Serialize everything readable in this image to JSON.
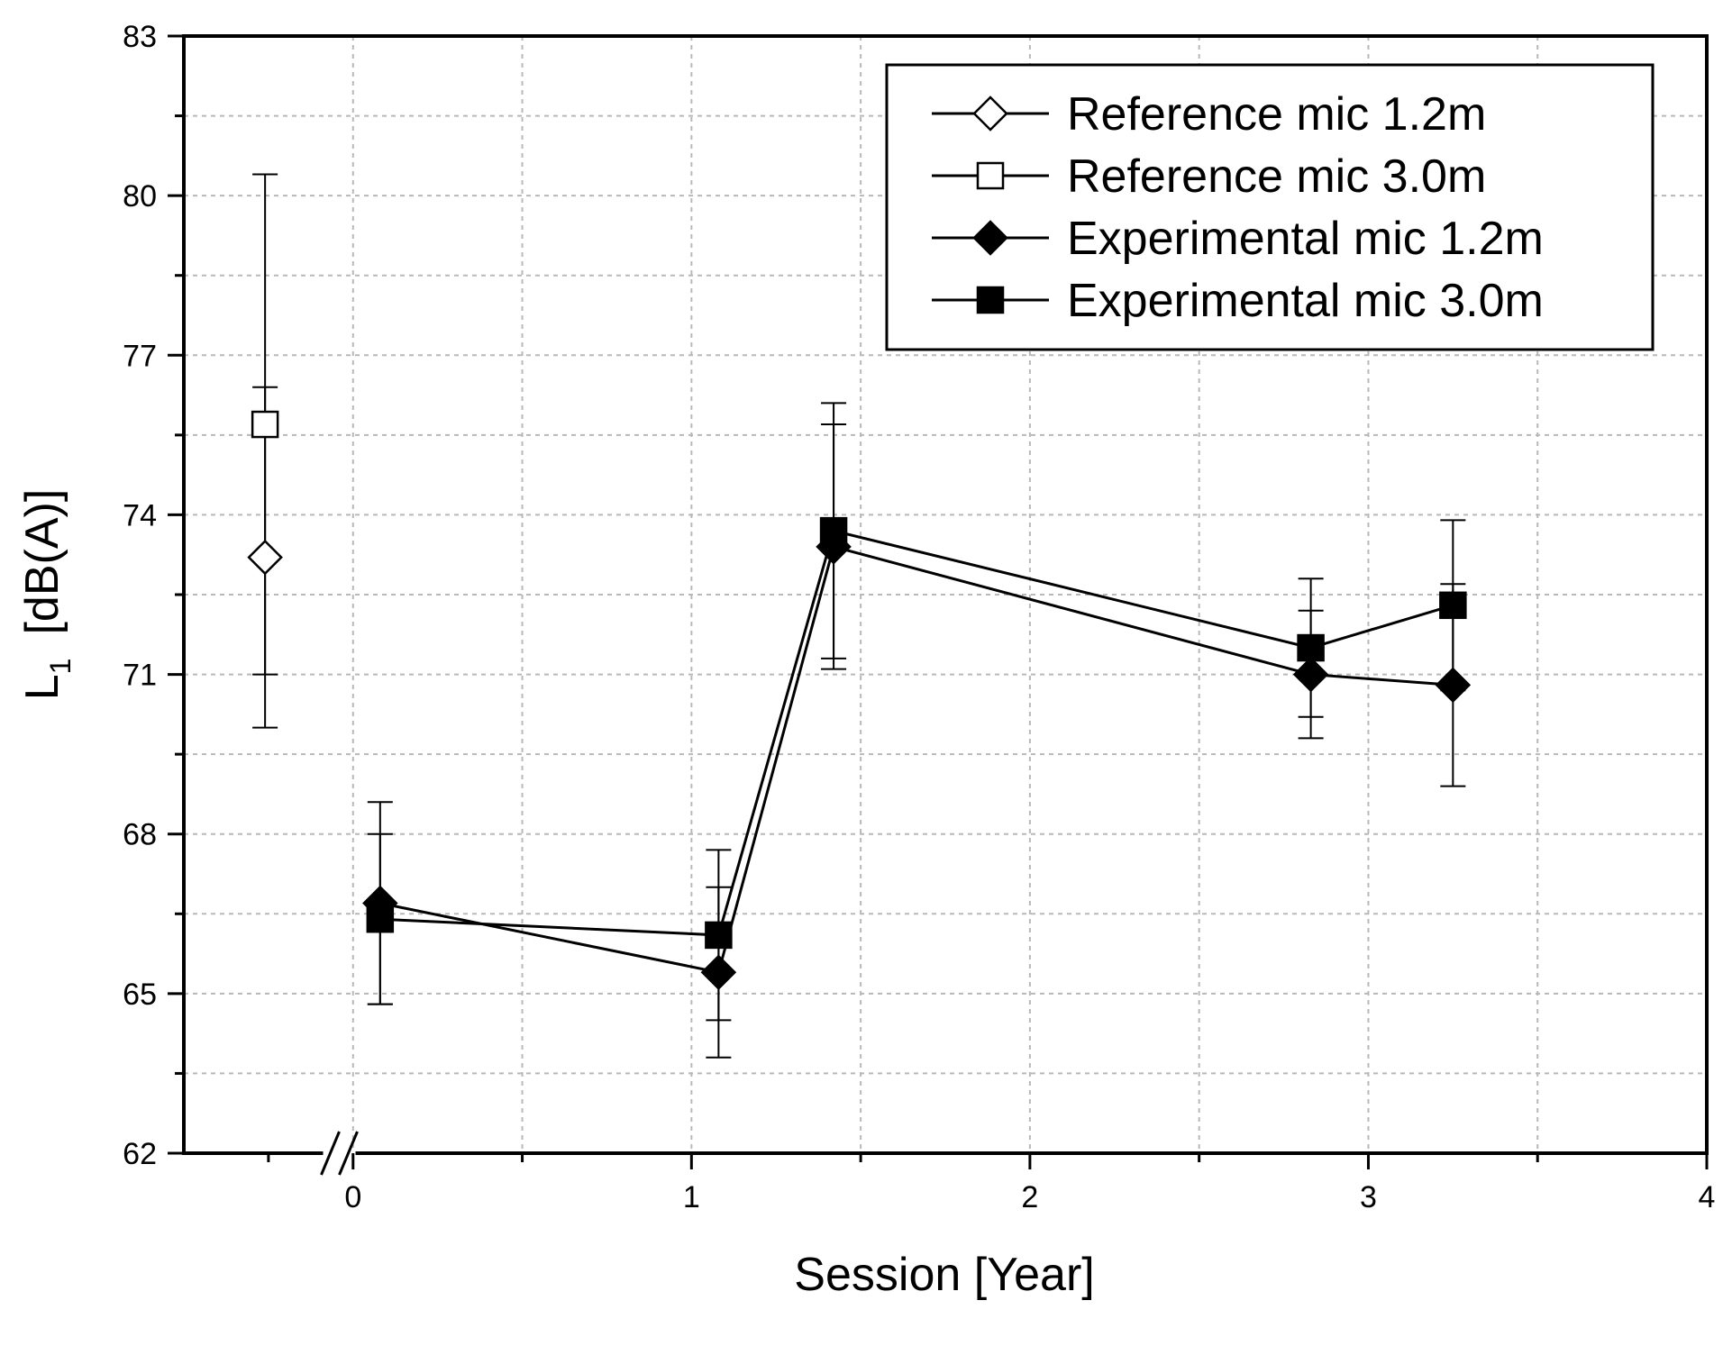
{
  "chart_data": {
    "type": "line",
    "title": "",
    "xlabel": "Session   [Year]",
    "ylabel_main": "L",
    "ylabel_sub": "1",
    "ylabel_rest": "[dB(A)]",
    "xlim": [
      -0.5,
      4
    ],
    "ylim": [
      62,
      83
    ],
    "x_ticks": [
      0,
      1,
      2,
      3,
      4
    ],
    "y_ticks": [
      62,
      65,
      68,
      71,
      74,
      77,
      80,
      83
    ],
    "x_tick_labels": [
      "0",
      "1",
      "2",
      "3",
      "4"
    ],
    "y_tick_labels": [
      "62",
      "65",
      "68",
      "71",
      "74",
      "77",
      "80",
      "83"
    ],
    "axis_break_at": -0.03,
    "grid": true,
    "legend_position": "top-right",
    "series": [
      {
        "name": "Reference mic 1.2m",
        "marker": "diamond-open",
        "connect": false,
        "points": [
          {
            "x": -0.26,
            "y": 73.2,
            "err_low": 70.0,
            "err_high": 76.4
          }
        ]
      },
      {
        "name": "Reference mic 3.0m",
        "marker": "square-open",
        "connect": false,
        "points": [
          {
            "x": -0.26,
            "y": 75.7,
            "err_low": 71.0,
            "err_high": 80.4
          }
        ]
      },
      {
        "name": "Experimental mic 1.2m",
        "marker": "diamond-filled",
        "connect": true,
        "points": [
          {
            "x": 0.08,
            "y": 66.7,
            "err_low": 64.8,
            "err_high": 68.6
          },
          {
            "x": 1.08,
            "y": 65.4,
            "err_low": 63.8,
            "err_high": 67.0
          },
          {
            "x": 1.42,
            "y": 73.4,
            "err_low": 71.1,
            "err_high": 75.7
          },
          {
            "x": 2.83,
            "y": 71.0,
            "err_low": 69.8,
            "err_high": 72.2
          },
          {
            "x": 3.25,
            "y": 70.8,
            "err_low": 68.9,
            "err_high": 72.7
          }
        ]
      },
      {
        "name": "Experimental mic 3.0m",
        "marker": "square-filled",
        "connect": true,
        "points": [
          {
            "x": 0.08,
            "y": 66.4,
            "err_low": 64.8,
            "err_high": 68.0
          },
          {
            "x": 1.08,
            "y": 66.1,
            "err_low": 64.5,
            "err_high": 67.7
          },
          {
            "x": 1.42,
            "y": 73.7,
            "err_low": 71.3,
            "err_high": 76.1
          },
          {
            "x": 2.83,
            "y": 71.5,
            "err_low": 70.2,
            "err_high": 72.8
          },
          {
            "x": 3.25,
            "y": 72.3,
            "err_low": 70.7,
            "err_high": 73.9
          }
        ]
      }
    ]
  }
}
